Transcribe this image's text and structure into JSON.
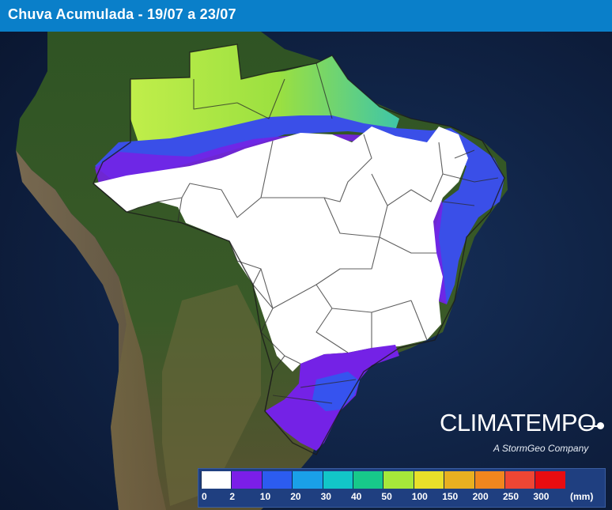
{
  "header": {
    "title": "Chuva Acumulada - 19/07 a 23/07"
  },
  "brand": {
    "name": "CLIMATEMPO",
    "tagline": "A StormGeo Company"
  },
  "legend": {
    "unit": "(mm)",
    "ticks": [
      "0",
      "2",
      "10",
      "20",
      "30",
      "40",
      "50",
      "100",
      "150",
      "200",
      "250",
      "300"
    ],
    "colors": [
      "#ffffff",
      "#7b1ee8",
      "#2c5cf0",
      "#1aa0e8",
      "#12c6c8",
      "#17c98a",
      "#a6e83a",
      "#e8e02a",
      "#e8b020",
      "#f0861e",
      "#ee4634",
      "#e80c10"
    ]
  }
}
